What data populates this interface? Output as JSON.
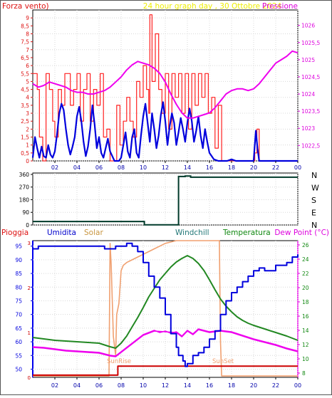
{
  "chart_data": [
    {
      "type": "line",
      "header": {
        "left": "Forza vento)",
        "center": "24 hour graph day , 30 Ottobre 2024",
        "right": "Pressione"
      },
      "x_ticks": [
        "02",
        "04",
        "06",
        "08",
        "10",
        "12",
        "14",
        "16",
        "18",
        "20",
        "22",
        "00"
      ],
      "left_ticks": [
        0,
        0.5,
        1,
        1.5,
        2,
        2.5,
        3,
        3.5,
        4,
        4.5,
        5,
        5.5,
        6,
        6.5,
        7,
        7.5,
        8,
        8.5,
        9
      ],
      "left_tick_labels": [
        "0",
        "0,5",
        "1",
        "1,5",
        "2",
        "2,5",
        "3",
        "3,5",
        "4",
        "4,5",
        "5",
        "5,5",
        "6",
        "6,5",
        "7",
        "7,5",
        "8",
        "8,5",
        "9"
      ],
      "right_ticks": [
        1022.5,
        1023,
        1023.5,
        1024,
        1024.5,
        1025,
        1025.5,
        1026
      ],
      "right_tick_labels": [
        "1022,5",
        "1023",
        "1023,5",
        "1024",
        "1024,5",
        "1025",
        "1025,5",
        "1026"
      ],
      "xlim": [
        0,
        24
      ],
      "ylim_left": [
        0,
        9.5
      ],
      "ylim_right": [
        1022.05,
        1026.45
      ],
      "colors": {
        "wind_gust": "#ff2020",
        "wind_avg": "#0000dd",
        "pressure": "#ee00ee"
      },
      "series": [
        {
          "key": "wind_gust",
          "style": "step",
          "x": [
            0,
            0.4,
            0.6,
            0.9,
            1.2,
            1.5,
            1.8,
            2.0,
            2.3,
            2.6,
            2.9,
            3.1,
            3.4,
            3.7,
            4.0,
            4.3,
            4.6,
            4.9,
            5.2,
            5.5,
            5.8,
            6.1,
            6.4,
            6.7,
            7.0,
            7.3,
            7.6,
            7.9,
            8.2,
            8.5,
            8.8,
            9.1,
            9.4,
            9.7,
            10.0,
            10.3,
            10.5,
            10.6,
            10.8,
            11.1,
            11.4,
            11.7,
            12.0,
            12.3,
            12.6,
            12.9,
            13.2,
            13.5,
            13.8,
            14.1,
            14.4,
            14.7,
            15.0,
            15.3,
            15.6,
            15.9,
            16.2,
            16.5,
            16.8,
            17.1,
            17.4,
            17.7,
            18.0,
            18.3,
            18.6,
            18.9,
            19.2,
            19.5,
            19.8,
            20.1,
            20.3,
            20.5,
            21,
            22,
            23,
            24
          ],
          "y": [
            5.5,
            4.5,
            1.5,
            0,
            5.5,
            4.5,
            2.5,
            1.5,
            4.5,
            3.5,
            5.5,
            5.5,
            3.5,
            4.5,
            5.5,
            2.5,
            4.5,
            5.5,
            2.5,
            4.5,
            3.5,
            5.5,
            1.5,
            2,
            0,
            0,
            3.5,
            1,
            2.5,
            4,
            2.5,
            1.5,
            5,
            4,
            6,
            4.5,
            3,
            9.2,
            5,
            8,
            4.5,
            3,
            5.5,
            2,
            5.5,
            4,
            5.5,
            3,
            5.5,
            2,
            5.5,
            3.5,
            5.5,
            4,
            5.5,
            3,
            4,
            0.8,
            3.5,
            0,
            0,
            0,
            0,
            0,
            0,
            0,
            0,
            0,
            0,
            0.5,
            2,
            0,
            0,
            0,
            0,
            0
          ]
        },
        {
          "key": "wind_avg",
          "style": "line",
          "x": [
            0,
            0.2,
            0.4,
            0.6,
            0.8,
            1.0,
            1.2,
            1.4,
            1.6,
            1.8,
            2.0,
            2.2,
            2.4,
            2.6,
            2.8,
            3.0,
            3.2,
            3.4,
            3.6,
            3.8,
            4.0,
            4.2,
            4.4,
            4.6,
            4.8,
            5.0,
            5.2,
            5.4,
            5.6,
            5.8,
            6.0,
            6.2,
            6.4,
            6.6,
            6.8,
            7.0,
            7.4,
            7.8,
            8.0,
            8.2,
            8.4,
            8.6,
            8.8,
            9.0,
            9.2,
            9.4,
            9.6,
            9.8,
            10.0,
            10.2,
            10.4,
            10.6,
            10.8,
            11.0,
            11.2,
            11.4,
            11.6,
            11.8,
            12.0,
            12.2,
            12.4,
            12.6,
            12.8,
            13.0,
            13.2,
            13.4,
            13.6,
            13.8,
            14.0,
            14.2,
            14.4,
            14.6,
            14.8,
            15.0,
            15.2,
            15.4,
            15.6,
            15.8,
            16.0,
            16.2,
            16.4,
            16.8,
            17.2,
            17.6,
            18.0,
            18.4,
            18.8,
            19.2,
            19.6,
            20.0,
            20.2,
            20.35,
            20.5,
            21,
            22,
            23,
            24
          ],
          "y": [
            0.2,
            1.5,
            0.8,
            0.2,
            0.9,
            0.3,
            0.2,
            1.0,
            0.4,
            0.2,
            0.6,
            1.7,
            3.0,
            3.6,
            3.2,
            2.0,
            1.0,
            0.4,
            0.9,
            1.5,
            2.8,
            3.4,
            2.5,
            1.2,
            0.3,
            0.9,
            2.0,
            3.5,
            2.3,
            0.8,
            1.5,
            0.5,
            0.2,
            0.8,
            1.4,
            0.6,
            0,
            0,
            0.2,
            1.0,
            1.8,
            0.6,
            0.2,
            1.5,
            2.0,
            0.5,
            0.2,
            1.6,
            2.8,
            3.6,
            2.4,
            1.2,
            3.0,
            2.0,
            0.8,
            1.6,
            2.9,
            3.7,
            2.5,
            1.0,
            2.2,
            3.0,
            2.4,
            1.0,
            1.8,
            2.7,
            2.0,
            1.2,
            2.4,
            3.3,
            2.5,
            1.2,
            1.9,
            2.8,
            1.6,
            0.8,
            2.0,
            1.2,
            0.5,
            0.3,
            0.1,
            0,
            0,
            0,
            0.1,
            0,
            0,
            0,
            0,
            0,
            1.9,
            0.8,
            0,
            0,
            0,
            0,
            0
          ]
        },
        {
          "key": "pressure",
          "style": "line",
          "x": [
            0,
            0.5,
            1.0,
            1.5,
            2.0,
            2.5,
            3.0,
            3.5,
            4.0,
            4.5,
            5.0,
            5.5,
            6.0,
            6.5,
            7.0,
            7.5,
            8.0,
            8.5,
            9.0,
            9.5,
            10.0,
            10.5,
            11.0,
            11.5,
            12.0,
            12.5,
            13.0,
            13.5,
            14.0,
            14.5,
            15.0,
            15.5,
            16.0,
            16.5,
            17.0,
            17.5,
            18.0,
            18.5,
            19.0,
            19.5,
            20.0,
            20.5,
            21.0,
            21.5,
            22.0,
            22.5,
            23.0,
            23.5,
            24.0
          ],
          "y": [
            1024.3,
            1024.2,
            1024.25,
            1024.35,
            1024.3,
            1024.25,
            1024.2,
            1024.1,
            1024.05,
            1024.05,
            1024.0,
            1024.0,
            1024.05,
            1024.1,
            1024.2,
            1024.35,
            1024.5,
            1024.7,
            1024.85,
            1024.95,
            1024.9,
            1024.85,
            1024.75,
            1024.6,
            1024.35,
            1024.0,
            1023.7,
            1023.45,
            1023.3,
            1023.3,
            1023.35,
            1023.4,
            1023.45,
            1023.6,
            1023.8,
            1024.0,
            1024.1,
            1024.15,
            1024.15,
            1024.1,
            1024.15,
            1024.3,
            1024.5,
            1024.7,
            1024.9,
            1025.0,
            1025.1,
            1025.25,
            1025.2
          ]
        }
      ]
    },
    {
      "type": "line",
      "header": {},
      "x_ticks": [],
      "left_ticks": [
        0,
        90,
        180,
        270,
        360
      ],
      "left_tick_labels": [
        "0",
        "90",
        "180",
        "270",
        "360"
      ],
      "right_labels": [
        "N",
        "W",
        "S",
        "E",
        "N"
      ],
      "xlim": [
        0,
        24
      ],
      "ylim_left": [
        0,
        370
      ],
      "colors": {
        "direction": "#003a2a"
      },
      "series": [
        {
          "key": "direction",
          "style": "step",
          "x": [
            0,
            10.0,
            10.1,
            13.2,
            13.8,
            14.3,
            24
          ],
          "y": [
            25,
            25,
            1,
            345,
            348,
            340,
            340
          ]
        }
      ]
    },
    {
      "type": "line",
      "header": {
        "pioggia": "Pioggia",
        "umidita": "Umidita",
        "solar": "Solar",
        "windchill": "Windchill",
        "temperatura": "Temperatura",
        "dewpoint": "Dew Point (°C)"
      },
      "annotations": {
        "sunrise": "SunRise",
        "sunset": "SunSet"
      },
      "x_ticks": [
        "02",
        "04",
        "06",
        "08",
        "10",
        "12",
        "14",
        "16",
        "18",
        "20",
        "22",
        "00"
      ],
      "left_ticks": [
        50,
        55,
        60,
        65,
        70,
        75,
        80,
        85,
        90,
        95
      ],
      "left_tick_labels": [
        "50",
        "55",
        "60",
        "65",
        "70",
        "75",
        "80",
        "85",
        "90",
        "95"
      ],
      "right_ticks": [
        8,
        10,
        12,
        14,
        16,
        18,
        20,
        22,
        24,
        26
      ],
      "right_tick_labels": [
        "8",
        "10",
        "12",
        "14",
        "16",
        "18",
        "20",
        "22",
        "24",
        "26"
      ],
      "rain_ticks": [
        0,
        1,
        2,
        3
      ],
      "rain_tick_labels": [
        "0",
        "1",
        "2",
        "3"
      ],
      "xlim": [
        0,
        24
      ],
      "ylim_left": [
        47,
        97
      ],
      "ylim_right": [
        7.4,
        26.6
      ],
      "ylim_rain": [
        0,
        3.05
      ],
      "colors": {
        "rain": "#cc0000",
        "humidity": "#0000dd",
        "solar": "#f0a070",
        "windchill": "#ee00ee",
        "temperature": "#228822",
        "dewpoint": "#ee00ee"
      },
      "series": [
        {
          "key": "rain",
          "axis": "rain",
          "style": "step",
          "x": [
            0,
            7.7,
            7.7,
            24
          ],
          "y": [
            0.05,
            0.05,
            0.25,
            0.25
          ]
        },
        {
          "key": "humidity",
          "axis": "left",
          "style": "step",
          "x": [
            0,
            0.5,
            1,
            2,
            3,
            4,
            5,
            6,
            6.5,
            7,
            7.5,
            8,
            8.5,
            9,
            9.5,
            10,
            10.5,
            11,
            11.5,
            12,
            12.5,
            13,
            13.2,
            13.6,
            13.8,
            14,
            14.5,
            15,
            15.5,
            16,
            16.5,
            17,
            17.5,
            18,
            18.5,
            19,
            19.5,
            20,
            20.5,
            21,
            22,
            23,
            23.5,
            24
          ],
          "y": [
            94,
            95,
            95,
            95,
            95,
            95,
            95,
            95,
            94,
            94,
            95,
            95,
            96,
            95,
            93,
            89,
            84,
            80,
            76,
            70,
            63,
            58,
            55,
            53,
            51,
            52,
            55,
            56,
            58,
            61,
            64,
            70,
            75,
            78,
            80,
            82,
            84,
            86,
            87,
            86,
            88,
            89,
            91,
            92
          ]
        },
        {
          "key": "solar",
          "axis": "left",
          "style": "line",
          "x": [
            0,
            6.9,
            7.0,
            7.1,
            7.3,
            7.5,
            7.6,
            7.8,
            8.0,
            8.2,
            8.5,
            9,
            9.5,
            10,
            10.5,
            11,
            11.5,
            12,
            12.5,
            13,
            14,
            15,
            16,
            16.9,
            17.0,
            17.1,
            24
          ],
          "y": [
            47.5,
            47.5,
            96,
            88,
            62,
            55,
            70,
            74,
            86,
            88,
            89,
            90,
            91,
            92,
            93,
            94,
            95,
            96,
            96.5,
            97,
            97,
            97,
            97,
            97,
            60,
            47.5,
            47.5
          ]
        },
        {
          "key": "temperature",
          "axis": "right",
          "style": "line",
          "x": [
            0,
            1,
            2,
            3,
            4,
            5,
            6,
            7,
            7.5,
            8,
            8.5,
            9,
            9.5,
            10,
            10.5,
            11,
            11.5,
            12,
            12.5,
            13,
            13.5,
            14,
            14.5,
            15,
            15.5,
            16,
            16.5,
            17,
            17.5,
            18,
            18.5,
            19,
            19.5,
            20,
            21,
            22,
            23,
            24
          ],
          "y": [
            13,
            12.8,
            12.6,
            12.5,
            12.4,
            12.3,
            12.2,
            11.7,
            11.5,
            12.2,
            13.2,
            14.5,
            15.8,
            17.2,
            18.7,
            19.9,
            21.1,
            22,
            22.9,
            23.6,
            24.1,
            24.5,
            24.1,
            23.4,
            22.4,
            21.1,
            19.7,
            18.4,
            17.4,
            16.6,
            15.9,
            15.4,
            15.0,
            14.7,
            14.2,
            13.7,
            13.2,
            12.6
          ]
        },
        {
          "key": "windchill",
          "axis": "right",
          "style": "line",
          "x": [
            0,
            1,
            2,
            3,
            4,
            5,
            6,
            7,
            7.5,
            8,
            9,
            10,
            11,
            11.5,
            12,
            12.5,
            13,
            13.5,
            14,
            14.5,
            15,
            16,
            17,
            18,
            19,
            20,
            21,
            22,
            23,
            24
          ],
          "y": [
            11.7,
            11.6,
            11.4,
            11.2,
            11.1,
            11.0,
            10.9,
            10.5,
            10.4,
            11.0,
            12.2,
            13.4,
            14.0,
            13.7,
            13.9,
            13.6,
            13.8,
            13.2,
            14.0,
            13.5,
            14.2,
            13.8,
            14.0,
            13.8,
            13.3,
            12.8,
            12.4,
            12.0,
            11.5,
            11.1
          ]
        },
        {
          "key": "dewpoint",
          "axis": "right",
          "style": "line",
          "x": [
            0,
            1,
            2,
            3,
            4,
            5,
            6,
            7,
            7.5,
            8,
            9,
            10,
            11,
            12,
            13,
            13.5,
            14,
            14.5,
            15,
            16,
            17,
            18,
            19,
            20,
            21,
            22,
            23,
            24
          ],
          "y": [
            11.6,
            11.5,
            11.3,
            11.1,
            11.0,
            10.9,
            10.8,
            10.4,
            10.3,
            10.9,
            12.1,
            13.3,
            13.9,
            13.8,
            13.7,
            13.1,
            13.9,
            13.4,
            14.1,
            13.7,
            13.9,
            13.7,
            13.2,
            12.7,
            12.3,
            11.9,
            11.4,
            11.0
          ]
        }
      ]
    }
  ]
}
